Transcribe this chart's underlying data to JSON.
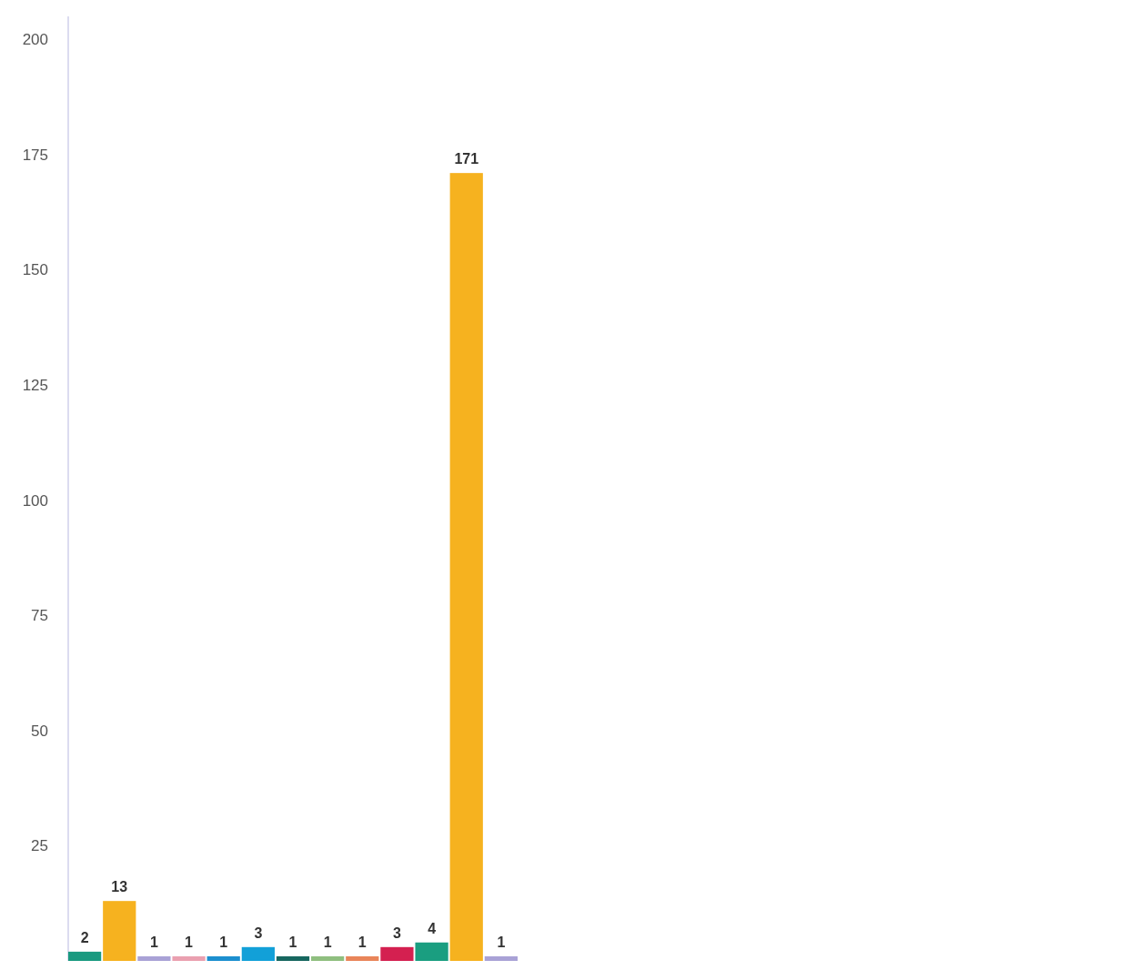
{
  "chart_data": {
    "type": "bar",
    "categories": [
      null,
      null,
      null,
      null,
      null,
      null,
      null,
      null,
      null,
      null,
      null,
      null,
      null
    ],
    "values": [
      2,
      13,
      1,
      1,
      1,
      3,
      1,
      1,
      1,
      3,
      4,
      171,
      1
    ],
    "colors": [
      "#1a9a80",
      "#f6b21f",
      "#a9a2d6",
      "#eaa0b0",
      "#1c8fcf",
      "#12a0d8",
      "#17675f",
      "#8fbf7f",
      "#e9855a",
      "#d42050",
      "#1a9e80",
      "#f6b21f",
      "#a9a2d6"
    ],
    "ylim": [
      0,
      205
    ],
    "yticks": [
      25,
      50,
      75,
      100,
      125,
      150,
      175,
      200
    ],
    "data_labels": true,
    "grid": false
  }
}
